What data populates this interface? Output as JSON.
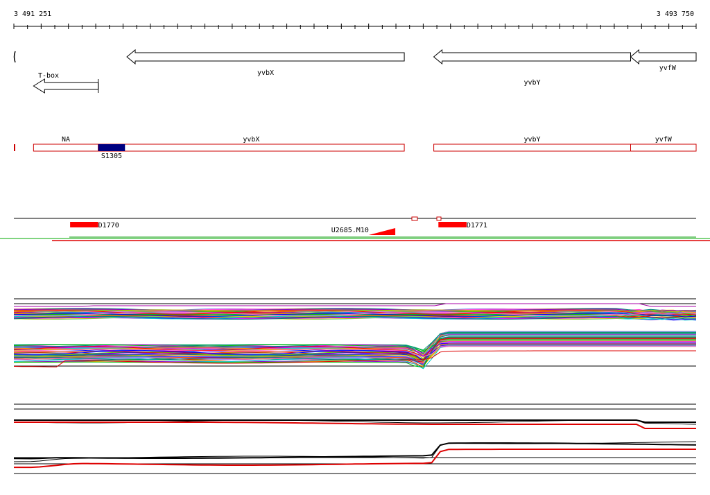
{
  "coordinates": {
    "start": "3 491 251",
    "end": "3 493 750",
    "start_value": 3491251,
    "end_value": 3493750
  },
  "annotation_track": {
    "genes": [
      {
        "label": "yvbX",
        "start": 3491665,
        "end": 3492681,
        "strand": "-"
      },
      {
        "label": "yvbY",
        "start": 3492789,
        "end": 3493510,
        "strand": "-"
      },
      {
        "label": "yvfW",
        "start": 3493510,
        "end": 3493750,
        "strand": "-"
      }
    ],
    "tbox": {
      "label": "T-box",
      "start": 3491323,
      "end": 3491560,
      "strand": "-"
    }
  },
  "segment_track": {
    "segments": [
      {
        "label": "NA",
        "start": 3491323,
        "end": 3491560
      },
      {
        "label": "yvbX",
        "start": 3491560,
        "end": 3492681
      },
      {
        "label": "yvbY",
        "start": 3492789,
        "end": 3493510
      },
      {
        "label": "yvfW",
        "start": 3493510,
        "end": 3493750
      }
    ],
    "highlight": {
      "label": "S1305",
      "start": 3491560,
      "end": 3491658,
      "color": "#000080"
    }
  },
  "feature_track": {
    "items": [
      {
        "label": "D1770",
        "start": 3491457,
        "end": 3491560
      },
      {
        "label": "D1771",
        "start": 3492806,
        "end": 3492909
      },
      {
        "label": "U2685.M10",
        "start": 3492551,
        "end": 3492648
      }
    ]
  },
  "colors": {
    "gene_outline": "#000000",
    "segment_outline": "#cc0000",
    "feature_fill": "#ff0000",
    "highlight_fill": "#000080",
    "profile_reference": "#000000",
    "profile_emphasis": "#dd0000"
  }
}
